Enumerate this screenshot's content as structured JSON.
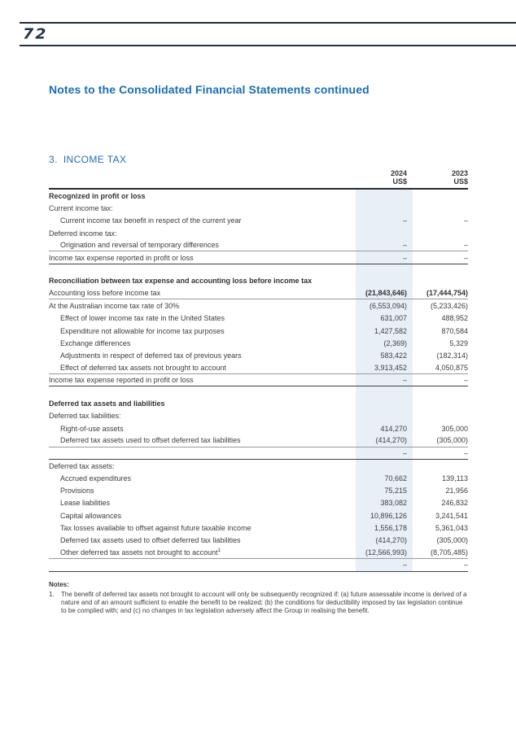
{
  "page": {
    "number": "72"
  },
  "doc_title": "Notes to the Consolidated Financial Statements continued",
  "section": {
    "number": "3.",
    "title": "INCOME TAX"
  },
  "colors": {
    "heading_blue": "#1c6db4",
    "rule_navy": "#232f45",
    "column_highlight": "#e9eff7",
    "body_text": "#3d3d3d"
  },
  "table": {
    "columns": [
      {
        "year": "2024",
        "unit": "US$"
      },
      {
        "year": "2023",
        "unit": "US$"
      }
    ],
    "sections": [
      {
        "rows": [
          {
            "label": "Recognized in profit or loss",
            "bold": true,
            "v2024": "",
            "v2023": ""
          },
          {
            "label": "Current income tax:",
            "v2024": "",
            "v2023": ""
          },
          {
            "label": "Current income tax benefit in respect of the current year",
            "indent": true,
            "v2024": "–",
            "v2023": "–"
          },
          {
            "label": "Deferred income tax:",
            "v2024": "",
            "v2023": ""
          },
          {
            "label": "Origination and reversal of temporary differences",
            "indent": true,
            "v2024": "–",
            "v2023": "–",
            "border": "thin"
          },
          {
            "label": "Income tax expense reported in profit or loss",
            "v2024": "–",
            "v2023": "–",
            "border": "dark"
          }
        ]
      },
      {
        "rows": [
          {
            "label": "Reconciliation between tax expense and accounting loss before income tax",
            "bold": true,
            "v2024": "",
            "v2023": ""
          },
          {
            "label": "Accounting loss before income tax",
            "boldVals": true,
            "v2024": "(21,843,646)",
            "v2023": "(17,444,754)",
            "border": "thin"
          },
          {
            "label": "At the Australian income tax rate of 30%",
            "v2024": "(6,553,094)",
            "v2023": "(5,233,426)"
          },
          {
            "label": "Effect of lower income tax rate in the United States",
            "indent": true,
            "v2024": "631,007",
            "v2023": "488,952"
          },
          {
            "label": "Expenditure not allowable for income tax purposes",
            "indent": true,
            "v2024": "1,427,582",
            "v2023": "870,584"
          },
          {
            "label": "Exchange differences",
            "indent": true,
            "v2024": "(2,369)",
            "v2023": "5,329"
          },
          {
            "label": "Adjustments in respect of deferred tax of previous years",
            "indent": true,
            "v2024": "583,422",
            "v2023": "(182,314)"
          },
          {
            "label": "Effect of deferred tax assets not brought to account",
            "indent": true,
            "v2024": "3,913,452",
            "v2023": "4,050,875",
            "border": "thin"
          },
          {
            "label": "Income tax expense reported in profit or loss",
            "v2024": "–",
            "v2023": "–",
            "border": "dark"
          }
        ]
      },
      {
        "rows": [
          {
            "label": "Deferred tax assets and liabilities",
            "bold": true,
            "v2024": "",
            "v2023": ""
          },
          {
            "label": "Deferred tax liabilities:",
            "v2024": "",
            "v2023": ""
          },
          {
            "label": "Right-of-use assets",
            "indent": true,
            "v2024": "414,270",
            "v2023": "305,000"
          },
          {
            "label": "Deferred tax assets used to offset deferred tax liabilities",
            "indent": true,
            "v2024": "(414,270)",
            "v2023": "(305,000)",
            "border": "thin"
          },
          {
            "label": "",
            "v2024": "–",
            "v2023": "–",
            "border": "dark"
          },
          {
            "label": "Deferred tax assets:",
            "v2024": "",
            "v2023": ""
          },
          {
            "label": "Accrued expenditures",
            "indent": true,
            "v2024": "70,662",
            "v2023": "139,113"
          },
          {
            "label": "Provisions",
            "indent": true,
            "v2024": "75,215",
            "v2023": "21,956"
          },
          {
            "label": "Lease liabilities",
            "indent": true,
            "v2024": "383,082",
            "v2023": "246,832"
          },
          {
            "label": "Capital allowances",
            "indent": true,
            "v2024": "10,896,126",
            "v2023": "3,241,541"
          },
          {
            "label": "Tax losses available to offset against future taxable income",
            "indent": true,
            "v2024": "1,556,178",
            "v2023": "5,361,043"
          },
          {
            "label": "Deferred tax assets used to offset deferred tax liabilities",
            "indent": true,
            "v2024": "(414,270)",
            "v2023": "(305,000)"
          },
          {
            "label": "Other deferred tax assets not brought to account",
            "sup": "1",
            "indent": true,
            "v2024": "(12,566,993)",
            "v2023": "(8,705,485)",
            "border": "thin"
          },
          {
            "label": "",
            "v2024": "–",
            "v2023": "–",
            "border": "dark"
          }
        ]
      }
    ]
  },
  "notes": {
    "heading": "Notes:",
    "items": [
      {
        "num": "1.",
        "text": "The benefit of deferred tax assets not brought to account will only be subsequently recognized if: (a) future assessable income is derived of a nature and of an amount sufficient to enable the benefit to be realized; (b) the conditions for deductibility imposed by tax legislation continue to be complied with; and (c) no changes in tax legislation adversely affect the Group in realising the benefit."
      }
    ]
  }
}
